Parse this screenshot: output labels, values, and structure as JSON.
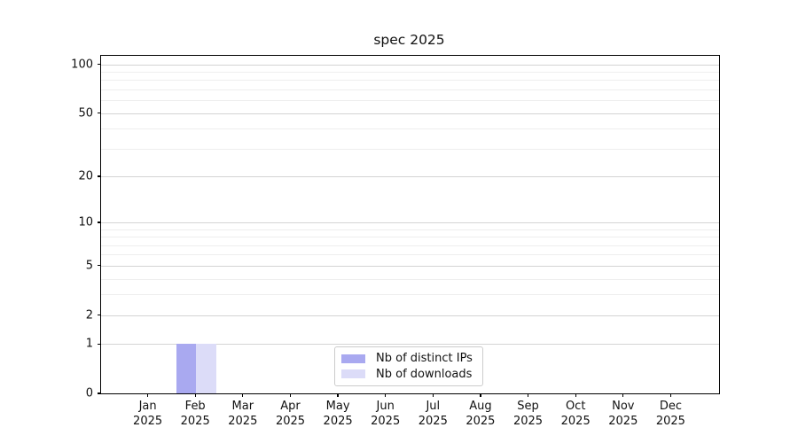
{
  "chart_data": {
    "type": "bar",
    "title": "spec 2025",
    "categories": [
      [
        "Jan",
        "2025"
      ],
      [
        "Feb",
        "2025"
      ],
      [
        "Mar",
        "2025"
      ],
      [
        "Apr",
        "2025"
      ],
      [
        "May",
        "2025"
      ],
      [
        "Jun",
        "2025"
      ],
      [
        "Jul",
        "2025"
      ],
      [
        "Aug",
        "2025"
      ],
      [
        "Sep",
        "2025"
      ],
      [
        "Oct",
        "2025"
      ],
      [
        "Nov",
        "2025"
      ],
      [
        "Dec",
        "2025"
      ]
    ],
    "series": [
      {
        "name": "Nb of distinct IPs",
        "color": "#a9a9f0",
        "values": [
          0,
          1,
          0,
          0,
          0,
          0,
          0,
          0,
          0,
          0,
          0,
          0
        ]
      },
      {
        "name": "Nb of downloads",
        "color": "#dcdcf8",
        "values": [
          0,
          1,
          0,
          0,
          0,
          0,
          0,
          0,
          0,
          0,
          0,
          0
        ]
      }
    ],
    "xlabel": "",
    "ylabel": "",
    "yscale": "log1p",
    "ylim": [
      0,
      110
    ],
    "y_major_ticks": [
      100,
      50,
      20,
      10,
      5,
      2,
      1,
      0
    ],
    "y_minor_gridlines": [
      3,
      4,
      6,
      7,
      8,
      9,
      30,
      40,
      60,
      70,
      80,
      90
    ],
    "grid": true,
    "legend_position": "lower center",
    "colors": {
      "text": "#111111",
      "spine": "#000000",
      "grid_major": "#d4d4d4",
      "grid_minor": "#eeeeee",
      "background": "#ffffff"
    }
  }
}
